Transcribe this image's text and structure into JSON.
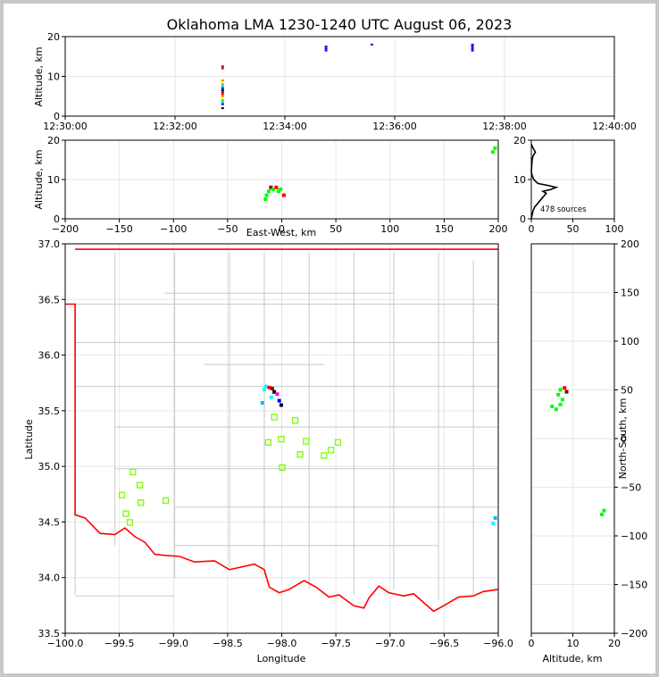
{
  "figure": {
    "title": "Oklahoma LMA 1230-1240 UTC August 06, 2023"
  },
  "colors": {
    "border": "#ff0000",
    "county": "#c8c8c8",
    "station": "#7cfc00",
    "grid": "#e6e6e6"
  },
  "chart_data": [
    {
      "name": "time-height",
      "type": "scatter",
      "ylabel": "Altitude, km",
      "ylim": [
        0,
        20
      ],
      "yticks": [
        "0",
        "10",
        "20"
      ],
      "xlim": [
        "12:30:00",
        "12:40:00"
      ],
      "xticks": [
        "12:30:00",
        "12:32:00",
        "12:34:00",
        "12:36:00",
        "12:38:00",
        "12:40:00"
      ],
      "points": [
        {
          "t": "12:32:52",
          "alt": [
            2,
            3,
            3.5,
            4,
            4.5,
            5,
            5.5,
            6,
            6.5,
            7,
            7.5,
            8,
            8.5,
            9,
            12,
            12.5
          ]
        },
        {
          "t": "12:34:45",
          "alt": [
            16.5,
            17,
            17.5
          ]
        },
        {
          "t": "12:35:35",
          "alt": [
            18
          ]
        },
        {
          "t": "12:37:25",
          "alt": [
            16.5,
            17,
            17.5,
            18
          ]
        }
      ]
    },
    {
      "name": "east-west-altitude",
      "type": "scatter",
      "xlabel": "East-West, km",
      "ylabel": "Altitude, km",
      "xlim": [
        -200,
        200
      ],
      "ylim": [
        0,
        20
      ],
      "xticks": [
        "−200",
        "−150",
        "−100",
        "−50",
        "0",
        "50",
        "100",
        "150",
        "200"
      ],
      "yticks": [
        "0",
        "10",
        "20"
      ]
    },
    {
      "name": "altitude-histogram",
      "type": "line",
      "annotation": "478 sources",
      "xlim": [
        0,
        100
      ],
      "ylim": [
        0,
        20
      ],
      "xticks": [
        "0",
        "50",
        "100"
      ],
      "yticks": [
        "0",
        "10",
        "20"
      ],
      "profile": [
        [
          0,
          0
        ],
        [
          1,
          1
        ],
        [
          2,
          2
        ],
        [
          4,
          3
        ],
        [
          6,
          3.5
        ],
        [
          10,
          4.5
        ],
        [
          14,
          5.5
        ],
        [
          18,
          6.5
        ],
        [
          14,
          7
        ],
        [
          24,
          7.5
        ],
        [
          30,
          8
        ],
        [
          20,
          8.5
        ],
        [
          8,
          9
        ],
        [
          3,
          10
        ],
        [
          1,
          11
        ],
        [
          0,
          12
        ],
        [
          1,
          15
        ],
        [
          2,
          16
        ],
        [
          5,
          17
        ],
        [
          2,
          18
        ],
        [
          0,
          19
        ]
      ]
    },
    {
      "name": "plan-view",
      "type": "scatter",
      "xlabel": "Longitude",
      "ylabel": "Latitude",
      "xlim": [
        -100.1,
        -95.75
      ],
      "ylim": [
        33.5,
        37.05
      ],
      "xticks": [
        "−100.0",
        "−99.5",
        "−99.0",
        "−98.5",
        "−98.0",
        "−97.5",
        "−97.0",
        "−96.5",
        "−96.0"
      ],
      "yticks": [
        "33.5",
        "34.0",
        "34.5",
        "35.0",
        "35.5",
        "36.0",
        "36.5",
        "37.0"
      ],
      "stations": [
        [
          -99.42,
          34.97
        ],
        [
          -99.53,
          34.76
        ],
        [
          -99.35,
          34.85
        ],
        [
          -99.34,
          34.69
        ],
        [
          -99.49,
          34.59
        ],
        [
          -99.45,
          34.51
        ],
        [
          -99.09,
          34.71
        ],
        [
          -98.06,
          35.24
        ],
        [
          -98.0,
          35.47
        ],
        [
          -97.93,
          35.27
        ],
        [
          -97.92,
          35.01
        ],
        [
          -97.79,
          35.44
        ],
        [
          -97.74,
          35.13
        ],
        [
          -97.68,
          35.25
        ],
        [
          -97.5,
          35.12
        ],
        [
          -97.43,
          35.17
        ],
        [
          -97.36,
          35.24
        ]
      ]
    },
    {
      "name": "altitude-north-south",
      "type": "scatter",
      "xlabel": "Altitude, km",
      "ylabel": "North-South, km",
      "xlim": [
        0,
        20
      ],
      "ylim": [
        -200,
        200
      ],
      "xticks": [
        "0",
        "10",
        "20"
      ],
      "yticks": [
        "−200",
        "−150",
        "−100",
        "−50",
        "0",
        "50",
        "100",
        "150",
        "200"
      ]
    }
  ]
}
